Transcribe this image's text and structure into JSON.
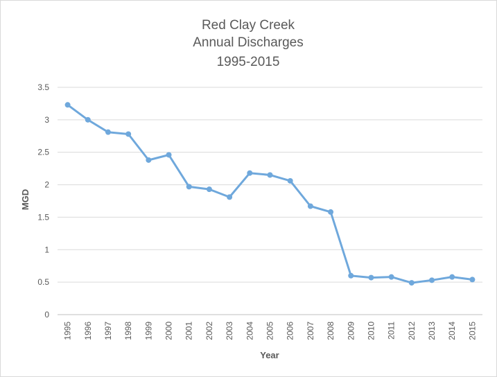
{
  "chart_data": {
    "type": "line",
    "title": [
      "Red Clay Creek",
      "Annual Discharges",
      "1995-2015"
    ],
    "xlabel": "Year",
    "ylabel": "MGD",
    "ylim": [
      0,
      3.5
    ],
    "yticks": [
      "0",
      "0.5",
      "1",
      "1.5",
      "2",
      "2.5",
      "3",
      "3.5"
    ],
    "grid": true,
    "legend": "none",
    "categories": [
      "1995",
      "1996",
      "1997",
      "1998",
      "1999",
      "2000",
      "2001",
      "2002",
      "2003",
      "2004",
      "2005",
      "2006",
      "2007",
      "2008",
      "2009",
      "2010",
      "2011",
      "2012",
      "2013",
      "2014",
      "2015"
    ],
    "series": [
      {
        "color": "#6fa8dc",
        "values": [
          3.23,
          3.0,
          2.81,
          2.78,
          2.38,
          2.46,
          1.97,
          1.93,
          1.81,
          2.18,
          2.15,
          2.06,
          1.67,
          1.58,
          0.6,
          0.57,
          0.58,
          0.49,
          0.53,
          0.58,
          0.54
        ]
      }
    ]
  }
}
